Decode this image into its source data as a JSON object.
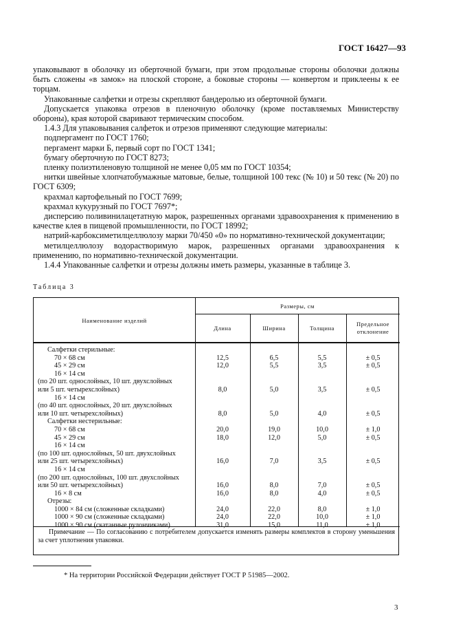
{
  "header": "ГОСТ 16427—93",
  "paragraphs": [
    {
      "t": "упаковывают в оболочку из оберточной бумаги, при этом продольные стороны оболочки должны быть сложены «в замок» на плоской стороне, а боковые стороны — конвертом и приклеены к ее торцам.",
      "ni": true
    },
    {
      "t": "Упакованные салфетки и отрезы скрепляют бандеролью из оберточной бумаги."
    },
    {
      "t": "Допускается упаковка отрезов в пленочную оболочку (кроме поставляемых Министерству обороны), края которой сваривают термическим способом."
    },
    {
      "t": "1.4.3 Для упаковывания салфеток и отрезов применяют следующие материалы:"
    },
    {
      "t": "подпергамент по ГОСТ 1760;"
    },
    {
      "t": "пергамент марки Б, первый сорт по ГОСТ 1341;"
    },
    {
      "t": "бумагу оберточную по ГОСТ 8273;"
    },
    {
      "t": "пленку полиэтиленовую толщиной не менее 0,05 мм по ГОСТ 10354;"
    },
    {
      "t": "нитки швейные хлопчатобумажные матовые, белые, толщиной 100 текс (№ 10) и 50 текс (№ 20) по ГОСТ 6309;"
    },
    {
      "t": "крахмал картофельный по ГОСТ 7699;"
    },
    {
      "t": "крахмал кукурузный по ГОСТ 7697*;"
    },
    {
      "t": "дисперсию поливинилацетатную марок, разрешенных органами здравоохранения к применению в качестве клея в пищевой промышленности, по ГОСТ 18992;"
    },
    {
      "t": "натрий-карбоксиметилцеллюлозу марки 70/450 «0» по нормативно-технической документации;"
    },
    {
      "t": "метилцеллюлозу водорастворимую марок, разрешенных органами здравоохранения к применению, по нормативно-технической документации."
    },
    {
      "t": "1.4.4 Упакованные салфетки и отрезы должны иметь размеры, указанные в таблице 3."
    }
  ],
  "table": {
    "caption": "Таблица 3",
    "head": {
      "name": "Наименование изделий",
      "group": "Размеры, см",
      "cols": [
        "Длина",
        "Ширина",
        "Толщина",
        "Предельное отклонение"
      ]
    },
    "rows": [
      [
        "Салфетки стерильные:",
        1,
        "",
        "",
        "",
        ""
      ],
      [
        "70 × 68 см",
        2,
        "12,5",
        "6,5",
        "5,5",
        "± 0,5"
      ],
      [
        "45 × 29 см",
        2,
        "12,0",
        "5,5",
        "3,5",
        "± 0,5"
      ],
      [
        "16 × 14 см",
        2,
        "",
        "",
        "",
        ""
      ],
      [
        "(по 20 шт. однослойных, 10 шт. двухслойных",
        0,
        "",
        "",
        "",
        ""
      ],
      [
        "или 5 шт. четырехслойных)",
        0,
        "8,0",
        "5,0",
        "3,5",
        "± 0,5"
      ],
      [
        "16 × 14 см",
        2,
        "",
        "",
        "",
        ""
      ],
      [
        "(по 40 шт. однослойных, 20 шт. двухслойных",
        0,
        "",
        "",
        "",
        ""
      ],
      [
        "или 10 шт. четырехслойных)",
        0,
        "8,0",
        "5,0",
        "4,0",
        "± 0,5"
      ],
      [
        "Салфетки нестерильные:",
        1,
        "",
        "",
        "",
        ""
      ],
      [
        "70 × 68 см",
        2,
        "20,0",
        "19,0",
        "10,0",
        "± 1,0"
      ],
      [
        "45 × 29 см",
        2,
        "18,0",
        "12,0",
        "5,0",
        "± 0,5"
      ],
      [
        "16 × 14 см",
        2,
        "",
        "",
        "",
        ""
      ],
      [
        "(по 100 шт. однослойных, 50 шт. двухслойных",
        0,
        "",
        "",
        "",
        ""
      ],
      [
        "или 25 шт. четырехслойных)",
        0,
        "16,0",
        "7,0",
        "3,5",
        "± 0,5"
      ],
      [
        "16 × 14 см",
        2,
        "",
        "",
        "",
        ""
      ],
      [
        "(по 200 шт. однослойных, 100 шт. двухслойных",
        0,
        "",
        "",
        "",
        ""
      ],
      [
        "или 50 шт. четырехслойных)",
        0,
        "16,0",
        "8,0",
        "7,0",
        "± 0,5"
      ],
      [
        "16 × 8 см",
        2,
        "16,0",
        "8,0",
        "4,0",
        "± 0,5"
      ],
      [
        "Отрезы:",
        1,
        "",
        "",
        "",
        ""
      ],
      [
        "1000 × 84 см (сложенные складками)",
        2,
        "24,0",
        "22,0",
        "8,0",
        "± 1,0"
      ],
      [
        "1000 × 90 см (сложенные складками)",
        2,
        "24,0",
        "22,0",
        "10,0",
        "± 1,0"
      ],
      [
        "1000 × 90 см (скатанные рулончиками)",
        2,
        "31,0",
        "15,0",
        "11,0",
        "± 1,0"
      ]
    ],
    "note": "Примечание — По согласованию с потребителем допускается изменять размеры комплектов в сторону уменьшения за счет уплотнения упаковки."
  },
  "footnote": "* На территории Российской Федерации действует ГОСТ Р 51985—2002.",
  "page_number": "3"
}
